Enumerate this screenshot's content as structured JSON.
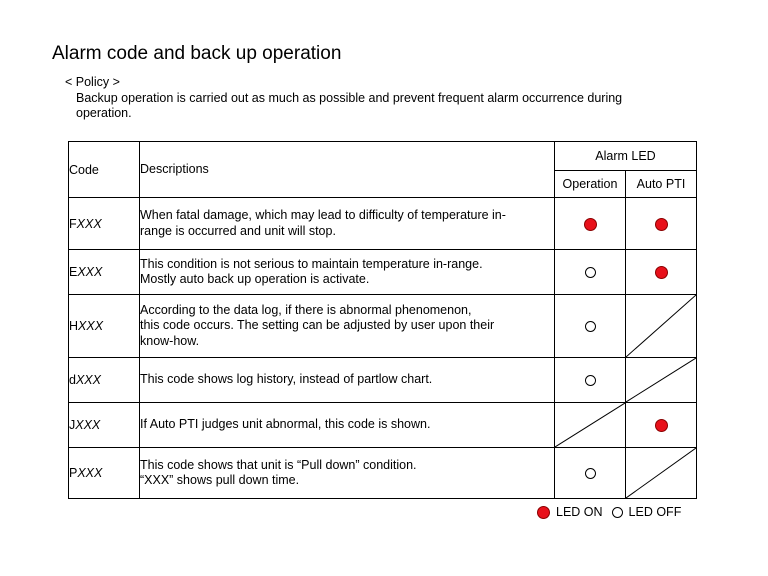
{
  "title": "Alarm code and back up operation",
  "policy": {
    "heading": "< Policy >",
    "text": "Backup operation is carried out as much as possible and prevent frequent alarm occurrence during operation."
  },
  "table": {
    "headers": {
      "code": "Code",
      "descriptions": "Descriptions",
      "alarm_led": "Alarm LED",
      "operation": "Operation",
      "auto_pti": "Auto PTI"
    },
    "rows": [
      {
        "code_prefix": "F",
        "code_suffix": "XXX",
        "lines": [
          "When fatal damage, which may lead to difficulty of temperature in-",
          "range is occurred and unit will stop."
        ],
        "operation": "on",
        "auto_pti": "on"
      },
      {
        "code_prefix": "E",
        "code_suffix": "XXX",
        "lines": [
          "This condition is not serious to maintain temperature in-range.",
          "Mostly auto back up operation is activate."
        ],
        "operation": "off",
        "auto_pti": "on"
      },
      {
        "code_prefix": "H",
        "code_suffix": "XXX",
        "lines": [
          "According to the data log, if there is abnormal phenomenon,",
          "this code occurs. The setting can be adjusted by user upon their",
          "know-how."
        ],
        "operation": "off",
        "auto_pti": "na"
      },
      {
        "code_prefix": "d",
        "code_suffix": "XXX",
        "lines": [
          "This code shows log history, instead of partlow chart."
        ],
        "operation": "off",
        "auto_pti": "na"
      },
      {
        "code_prefix": "J",
        "code_suffix": "XXX",
        "lines": [
          "If Auto PTI judges unit abnormal, this code is shown."
        ],
        "operation": "na",
        "auto_pti": "on"
      },
      {
        "code_prefix": "P",
        "code_suffix": "XXX",
        "lines": [
          "This code shows that unit is “Pull down” condition.",
          "“XXX” shows pull down time."
        ],
        "operation": "off",
        "auto_pti": "na"
      }
    ]
  },
  "legend": {
    "on_label": "LED ON",
    "off_label": "LED OFF",
    "on_color": "#e8101a"
  }
}
